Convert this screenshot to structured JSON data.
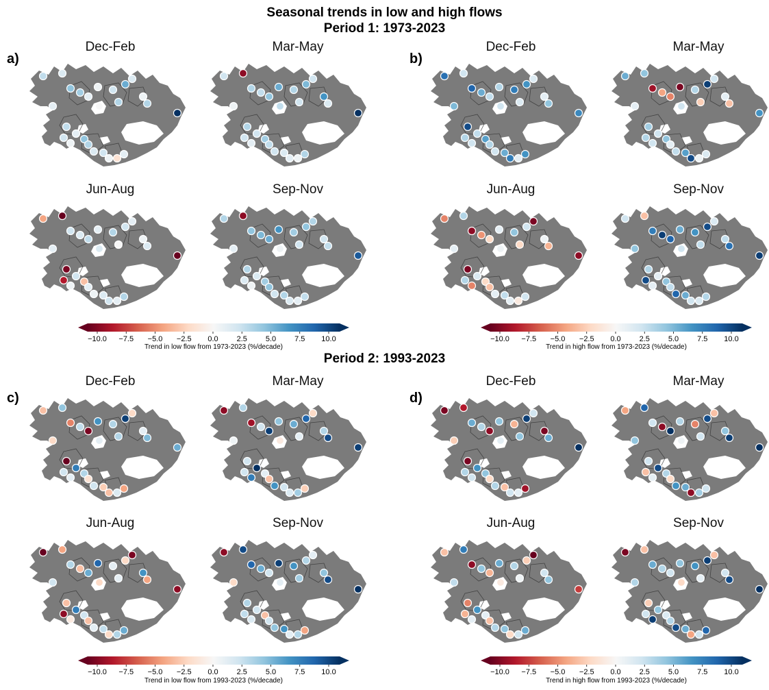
{
  "titles": {
    "main": "Seasonal trends in low and high flows",
    "period1": "Period 1: 1973-2023",
    "period2": "Period 2: 1993-2023"
  },
  "panel_letters": [
    "a)",
    "b)",
    "c)",
    "d)"
  ],
  "seasons": [
    "Dec-Feb",
    "Mar-May",
    "Jun-Aug",
    "Sep-Nov"
  ],
  "colorbar": {
    "ticks": [
      "−10.0",
      "−7.5",
      "−5.0",
      "−2.5",
      "0.0",
      "2.5",
      "5.0",
      "7.5",
      "10.0"
    ],
    "range": [
      -10,
      10
    ],
    "colors": [
      "#67001f",
      "#b2182b",
      "#d6604d",
      "#f4a582",
      "#fddbc7",
      "#f7f7f7",
      "#d1e5f0",
      "#92c5de",
      "#4393c3",
      "#2166ac",
      "#053061"
    ],
    "caption_a": "Trend in low flow from 1973-2023 (%/decade)",
    "caption_b": "Trend in high flow from 1973-2023 (%/decade)",
    "caption_c": "Trend in low flow from 1993-2023 (%/decade)",
    "caption_d": "Trend in high flow from 1993-2023 (%/decade)"
  },
  "map_colors": {
    "land": "#7b7b7b",
    "glacier": "#ffffff",
    "outline": "#333333"
  },
  "panels": {
    "a": {
      "Dec-Feb": [
        2.5,
        1.5,
        4.0,
        3.5,
        1.0,
        0.5,
        2.0,
        5.0,
        1.5,
        0.5,
        3.0,
        10.0,
        2.5,
        1.0,
        4.0,
        3.0,
        1.5,
        2.0,
        0.5,
        -1.5,
        1.0,
        2.0,
        0.5,
        3.0,
        1.0,
        0.0
      ],
      "Mar-May": [
        2.0,
        -9.0,
        3.0,
        2.5,
        4.0,
        5.0,
        3.0,
        4.5,
        2.0,
        6.0,
        1.5,
        10.0,
        3.0,
        2.0,
        3.5,
        2.5,
        2.0,
        1.5,
        1.0,
        0.5,
        3.0,
        2.0,
        1.0,
        2.0,
        0.5,
        2.5
      ],
      "Jun-Aug": [
        -4.0,
        -10.0,
        2.0,
        1.5,
        2.5,
        1.0,
        3.0,
        2.0,
        1.0,
        0.5,
        1.5,
        -10.0,
        -9.5,
        2.0,
        -3.0,
        1.0,
        0.5,
        1.5,
        2.0,
        1.0,
        3.0,
        -8.0,
        0.5,
        0.0,
        1.0,
        1.5
      ],
      "Sep-Nov": [
        3.0,
        -9.0,
        4.0,
        4.5,
        5.0,
        6.0,
        3.5,
        4.0,
        3.0,
        2.0,
        2.5,
        8.5,
        3.0,
        1.5,
        3.5,
        4.0,
        2.0,
        3.0,
        1.5,
        1.0,
        2.5,
        1.5,
        0.5,
        2.0,
        1.0,
        0.5
      ]
    },
    "b": {
      "Dec-Feb": [
        7.5,
        2.0,
        8.0,
        5.0,
        2.5,
        3.0,
        7.0,
        6.0,
        1.5,
        1.0,
        4.0,
        6.5,
        9.0,
        2.5,
        5.5,
        3.0,
        2.0,
        5.0,
        7.0,
        1.0,
        6.0,
        3.0,
        2.0,
        1.5,
        4.5,
        2.0
      ],
      "Mar-May": [
        5.0,
        4.0,
        -8.5,
        -4.0,
        -5.0,
        -9.5,
        3.0,
        9.5,
        2.0,
        1.0,
        -3.0,
        6.0,
        3.5,
        2.0,
        4.0,
        1.0,
        2.5,
        5.5,
        9.0,
        0.5,
        1.5,
        3.0,
        2.0,
        -2.5,
        1.0,
        2.0
      ],
      "Jun-Aug": [
        -5.0,
        3.0,
        -9.0,
        -4.5,
        -2.0,
        1.0,
        4.0,
        2.0,
        -9.5,
        0.5,
        -3.5,
        -9.0,
        -9.5,
        1.5,
        -2.0,
        -3.0,
        1.0,
        2.5,
        1.0,
        -1.0,
        2.0,
        3.0,
        -5.0,
        -2.0,
        1.0,
        0.5
      ],
      "Sep-Nov": [
        2.0,
        -3.0,
        7.0,
        9.5,
        8.0,
        5.0,
        6.0,
        9.0,
        1.5,
        2.5,
        7.5,
        9.5,
        3.0,
        1.0,
        4.0,
        2.5,
        8.0,
        5.0,
        2.0,
        1.5,
        3.0,
        9.0,
        1.0,
        2.5,
        4.0,
        2.0
      ]
    },
    "c": {
      "Dec-Feb": [
        -3.0,
        4.0,
        -5.0,
        2.5,
        -9.5,
        6.0,
        3.0,
        9.5,
        -2.0,
        1.0,
        4.5,
        5.0,
        -10.0,
        7.0,
        3.0,
        -1.5,
        2.0,
        -2.5,
        -3.0,
        1.5,
        -4.0,
        2.0,
        1.0,
        3.0,
        -2.0,
        1.0
      ],
      "Mar-May": [
        -9.0,
        3.0,
        -8.5,
        2.0,
        9.5,
        4.0,
        5.0,
        8.0,
        -2.0,
        3.0,
        9.0,
        9.5,
        2.0,
        10.0,
        1.0,
        -3.0,
        6.0,
        2.0,
        1.5,
        3.5,
        -2.5,
        2.0,
        7.0,
        1.0,
        0.5,
        -1.0
      ],
      "Jun-Aug": [
        -10.0,
        -4.0,
        3.0,
        -3.0,
        5.0,
        8.0,
        1.0,
        -2.0,
        -9.5,
        6.0,
        -4.0,
        -9.0,
        -3.0,
        7.0,
        2.0,
        -3.0,
        1.0,
        2.5,
        -2.0,
        3.0,
        5.0,
        -9.0,
        -1.0,
        1.0,
        2.0,
        -2.0
      ],
      "Sep-Nov": [
        -9.0,
        9.0,
        8.0,
        5.0,
        2.0,
        9.5,
        6.0,
        3.0,
        1.0,
        4.0,
        9.0,
        10.0,
        3.0,
        2.0,
        -3.0,
        2.0,
        4.0,
        6.0,
        1.0,
        3.0,
        -4.0,
        2.5,
        1.5,
        3.5,
        -2.0,
        1.0
      ]
    },
    "d": {
      "Dec-Feb": [
        -9.5,
        -8.0,
        5.0,
        3.0,
        -9.0,
        4.0,
        -3.5,
        9.5,
        2.0,
        -9.5,
        5.0,
        10.0,
        -9.5,
        6.0,
        4.0,
        -2.0,
        3.0,
        -3.0,
        2.0,
        1.0,
        -8.5,
        3.0,
        2.0,
        4.0,
        -2.5,
        1.0
      ],
      "Mar-May": [
        -4.0,
        8.0,
        2.0,
        -9.0,
        10.0,
        3.0,
        -5.0,
        9.0,
        -3.0,
        4.0,
        9.5,
        10.0,
        2.0,
        9.0,
        3.0,
        -2.0,
        6.0,
        5.0,
        -9.0,
        3.5,
        2.0,
        -3.0,
        1.0,
        2.0,
        4.0,
        0.5
      ],
      "Jun-Aug": [
        -3.0,
        7.0,
        -9.0,
        4.0,
        -3.5,
        5.0,
        3.0,
        -2.5,
        -10.0,
        2.0,
        4.0,
        -7.0,
        -5.0,
        6.0,
        1.0,
        -3.0,
        3.0,
        4.0,
        -2.0,
        2.0,
        5.0,
        -3.5,
        1.0,
        0.5,
        2.5,
        -1.0
      ],
      "Sep-Nov": [
        -9.5,
        -3.0,
        5.0,
        3.0,
        2.0,
        4.0,
        6.0,
        9.5,
        -3.0,
        2.0,
        9.0,
        10.0,
        -2.5,
        4.0,
        1.5,
        3.0,
        9.0,
        5.0,
        -4.0,
        2.0,
        8.0,
        2.0,
        9.5,
        1.0,
        3.0,
        -2.0
      ]
    }
  }
}
